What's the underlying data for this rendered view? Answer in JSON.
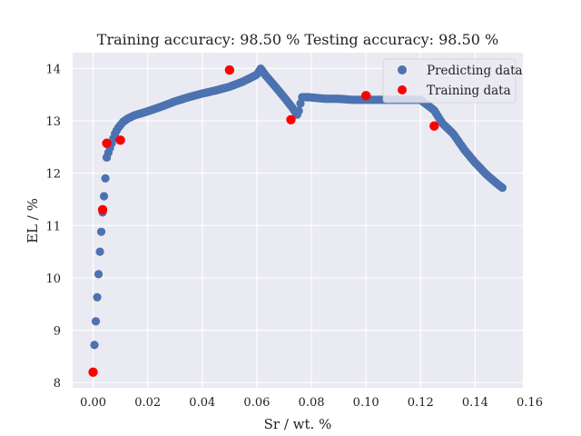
{
  "chart_data": {
    "type": "scatter",
    "title": "Training accuracy: 98.50 %  Testing accuracy: 98.50 %",
    "xlabel": "Sr / wt. %",
    "ylabel": "EL / %",
    "xlim": [
      -0.0075,
      0.1575
    ],
    "ylim": [
      7.9,
      14.3
    ],
    "xticks": [
      0.0,
      0.02,
      0.04,
      0.06,
      0.08,
      0.1,
      0.12,
      0.14,
      0.16
    ],
    "xtick_labels": [
      "0.00",
      "0.02",
      "0.04",
      "0.06",
      "0.08",
      "0.10",
      "0.12",
      "0.14",
      "0.16"
    ],
    "yticks": [
      8,
      9,
      10,
      11,
      12,
      13,
      14
    ],
    "ytick_labels": [
      "8",
      "9",
      "10",
      "11",
      "12",
      "13",
      "14"
    ],
    "grid": true,
    "legend_position": "top-right",
    "background": "#eaeaf2",
    "series": [
      {
        "name": "Predicting data",
        "color": "#4c72b0",
        "curve_anchors": [
          [
            0.0,
            8.2
          ],
          [
            0.0005,
            8.72
          ],
          [
            0.001,
            9.17
          ],
          [
            0.0015,
            9.63
          ],
          [
            0.002,
            10.07
          ],
          [
            0.0025,
            10.5
          ],
          [
            0.003,
            10.88
          ],
          [
            0.0035,
            11.25
          ],
          [
            0.004,
            11.56
          ],
          [
            0.0045,
            11.9
          ],
          [
            0.005,
            12.3
          ],
          [
            0.006,
            12.45
          ],
          [
            0.007,
            12.6
          ],
          [
            0.008,
            12.75
          ],
          [
            0.009,
            12.85
          ],
          [
            0.011,
            12.98
          ],
          [
            0.013,
            13.05
          ],
          [
            0.015,
            13.1
          ],
          [
            0.02,
            13.18
          ],
          [
            0.025,
            13.27
          ],
          [
            0.03,
            13.37
          ],
          [
            0.035,
            13.45
          ],
          [
            0.04,
            13.52
          ],
          [
            0.045,
            13.58
          ],
          [
            0.05,
            13.65
          ],
          [
            0.055,
            13.75
          ],
          [
            0.06,
            13.88
          ],
          [
            0.0615,
            14.0
          ],
          [
            0.063,
            13.88
          ],
          [
            0.066,
            13.7
          ],
          [
            0.07,
            13.45
          ],
          [
            0.073,
            13.25
          ],
          [
            0.075,
            13.1
          ],
          [
            0.0765,
            13.45
          ],
          [
            0.079,
            13.45
          ],
          [
            0.085,
            13.42
          ],
          [
            0.09,
            13.42
          ],
          [
            0.095,
            13.4
          ],
          [
            0.1,
            13.4
          ],
          [
            0.105,
            13.4
          ],
          [
            0.11,
            13.4
          ],
          [
            0.115,
            13.4
          ],
          [
            0.12,
            13.4
          ],
          [
            0.125,
            13.2
          ],
          [
            0.128,
            12.95
          ],
          [
            0.132,
            12.75
          ],
          [
            0.136,
            12.45
          ],
          [
            0.14,
            12.2
          ],
          [
            0.144,
            11.98
          ],
          [
            0.148,
            11.8
          ],
          [
            0.15,
            11.72
          ]
        ],
        "n_points": 240
      },
      {
        "name": "Training data",
        "color": "#ff0000",
        "x": [
          0.0,
          0.0035,
          0.005,
          0.01,
          0.05,
          0.0725,
          0.1,
          0.125
        ],
        "y": [
          8.2,
          11.3,
          12.57,
          12.63,
          13.97,
          13.02,
          13.48,
          12.9
        ]
      }
    ]
  }
}
